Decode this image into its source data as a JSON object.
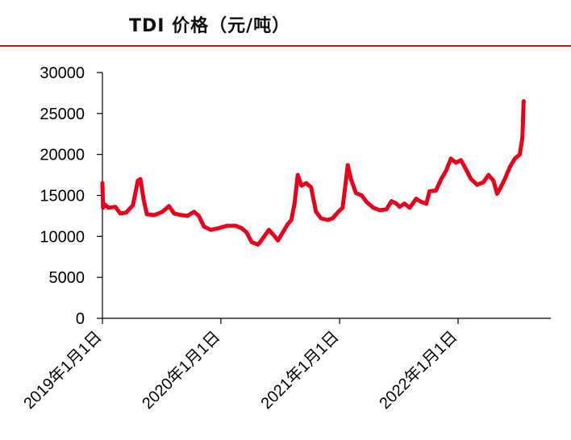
{
  "title": "TDI 价格（元/吨）",
  "chart_data": {
    "type": "line",
    "title": "TDI 价格（元/吨）",
    "xlabel": "",
    "ylabel": "",
    "ylim": [
      0,
      30000
    ],
    "yticks": [
      "0",
      "5000",
      "10000",
      "15000",
      "20000",
      "25000",
      "30000"
    ],
    "xticks": [
      {
        "date": "2019-01-01",
        "label": "2019年1月1日"
      },
      {
        "date": "2020-01-01",
        "label": "2020年1月1日"
      },
      {
        "date": "2021-01-01",
        "label": "2021年1月1日"
      },
      {
        "date": "2022-01-01",
        "label": "2022年1月1日"
      }
    ],
    "grid": false,
    "legend": "none",
    "series": [
      {
        "color": "#e8001c",
        "points": [
          [
            "2019-01-01",
            16500
          ],
          [
            "2019-01-03",
            13500
          ],
          [
            "2019-01-08",
            13900
          ],
          [
            "2019-01-20",
            13500
          ],
          [
            "2019-02-10",
            13600
          ],
          [
            "2019-02-25",
            12800
          ],
          [
            "2019-03-15",
            12900
          ],
          [
            "2019-04-05",
            13800
          ],
          [
            "2019-04-20",
            16800
          ],
          [
            "2019-04-28",
            17000
          ],
          [
            "2019-05-08",
            14500
          ],
          [
            "2019-05-18",
            12700
          ],
          [
            "2019-06-10",
            12600
          ],
          [
            "2019-07-05",
            13000
          ],
          [
            "2019-07-25",
            13700
          ],
          [
            "2019-08-10",
            12800
          ],
          [
            "2019-09-01",
            12600
          ],
          [
            "2019-09-20",
            12500
          ],
          [
            "2019-10-10",
            13000
          ],
          [
            "2019-10-25",
            12500
          ],
          [
            "2019-11-10",
            11200
          ],
          [
            "2019-12-01",
            10800
          ],
          [
            "2019-12-25",
            11000
          ],
          [
            "2020-01-20",
            11300
          ],
          [
            "2020-02-15",
            11300
          ],
          [
            "2020-03-05",
            11000
          ],
          [
            "2020-03-20",
            10500
          ],
          [
            "2020-04-05",
            9300
          ],
          [
            "2020-04-25",
            9000
          ],
          [
            "2020-05-10",
            9800
          ],
          [
            "2020-05-28",
            10800
          ],
          [
            "2020-06-15",
            10000
          ],
          [
            "2020-06-25",
            9500
          ],
          [
            "2020-07-10",
            10500
          ],
          [
            "2020-07-25",
            11500
          ],
          [
            "2020-08-05",
            12000
          ],
          [
            "2020-08-15",
            14000
          ],
          [
            "2020-08-25",
            17500
          ],
          [
            "2020-09-05",
            16200
          ],
          [
            "2020-09-20",
            16500
          ],
          [
            "2020-10-05",
            16000
          ],
          [
            "2020-10-20",
            13000
          ],
          [
            "2020-11-05",
            12200
          ],
          [
            "2020-11-25",
            12000
          ],
          [
            "2020-12-10",
            12200
          ],
          [
            "2020-12-28",
            13000
          ],
          [
            "2021-01-10",
            13500
          ],
          [
            "2021-01-18",
            16000
          ],
          [
            "2021-01-26",
            18700
          ],
          [
            "2021-02-05",
            17000
          ],
          [
            "2021-02-20",
            15300
          ],
          [
            "2021-03-10",
            15000
          ],
          [
            "2021-03-25",
            14200
          ],
          [
            "2021-04-15",
            13500
          ],
          [
            "2021-05-05",
            13200
          ],
          [
            "2021-05-25",
            13300
          ],
          [
            "2021-06-10",
            14300
          ],
          [
            "2021-06-25",
            14000
          ],
          [
            "2021-07-05",
            13600
          ],
          [
            "2021-07-20",
            14000
          ],
          [
            "2021-08-05",
            13500
          ],
          [
            "2021-08-25",
            14600
          ],
          [
            "2021-09-10",
            14200
          ],
          [
            "2021-09-25",
            14000
          ],
          [
            "2021-10-05",
            15500
          ],
          [
            "2021-10-25",
            15600
          ],
          [
            "2021-11-10",
            17000
          ],
          [
            "2021-11-25",
            18000
          ],
          [
            "2021-12-10",
            19500
          ],
          [
            "2021-12-25",
            19000
          ],
          [
            "2022-01-10",
            19300
          ],
          [
            "2022-01-25",
            18200
          ],
          [
            "2022-02-10",
            17000
          ],
          [
            "2022-03-01",
            16300
          ],
          [
            "2022-03-20",
            16600
          ],
          [
            "2022-04-05",
            17500
          ],
          [
            "2022-04-20",
            16800
          ],
          [
            "2022-05-01",
            15200
          ],
          [
            "2022-05-10",
            15800
          ],
          [
            "2022-05-25",
            17000
          ],
          [
            "2022-06-10",
            18500
          ],
          [
            "2022-06-25",
            19500
          ],
          [
            "2022-07-10",
            20000
          ],
          [
            "2022-07-18",
            22000
          ],
          [
            "2022-07-22",
            26500
          ]
        ]
      }
    ]
  }
}
